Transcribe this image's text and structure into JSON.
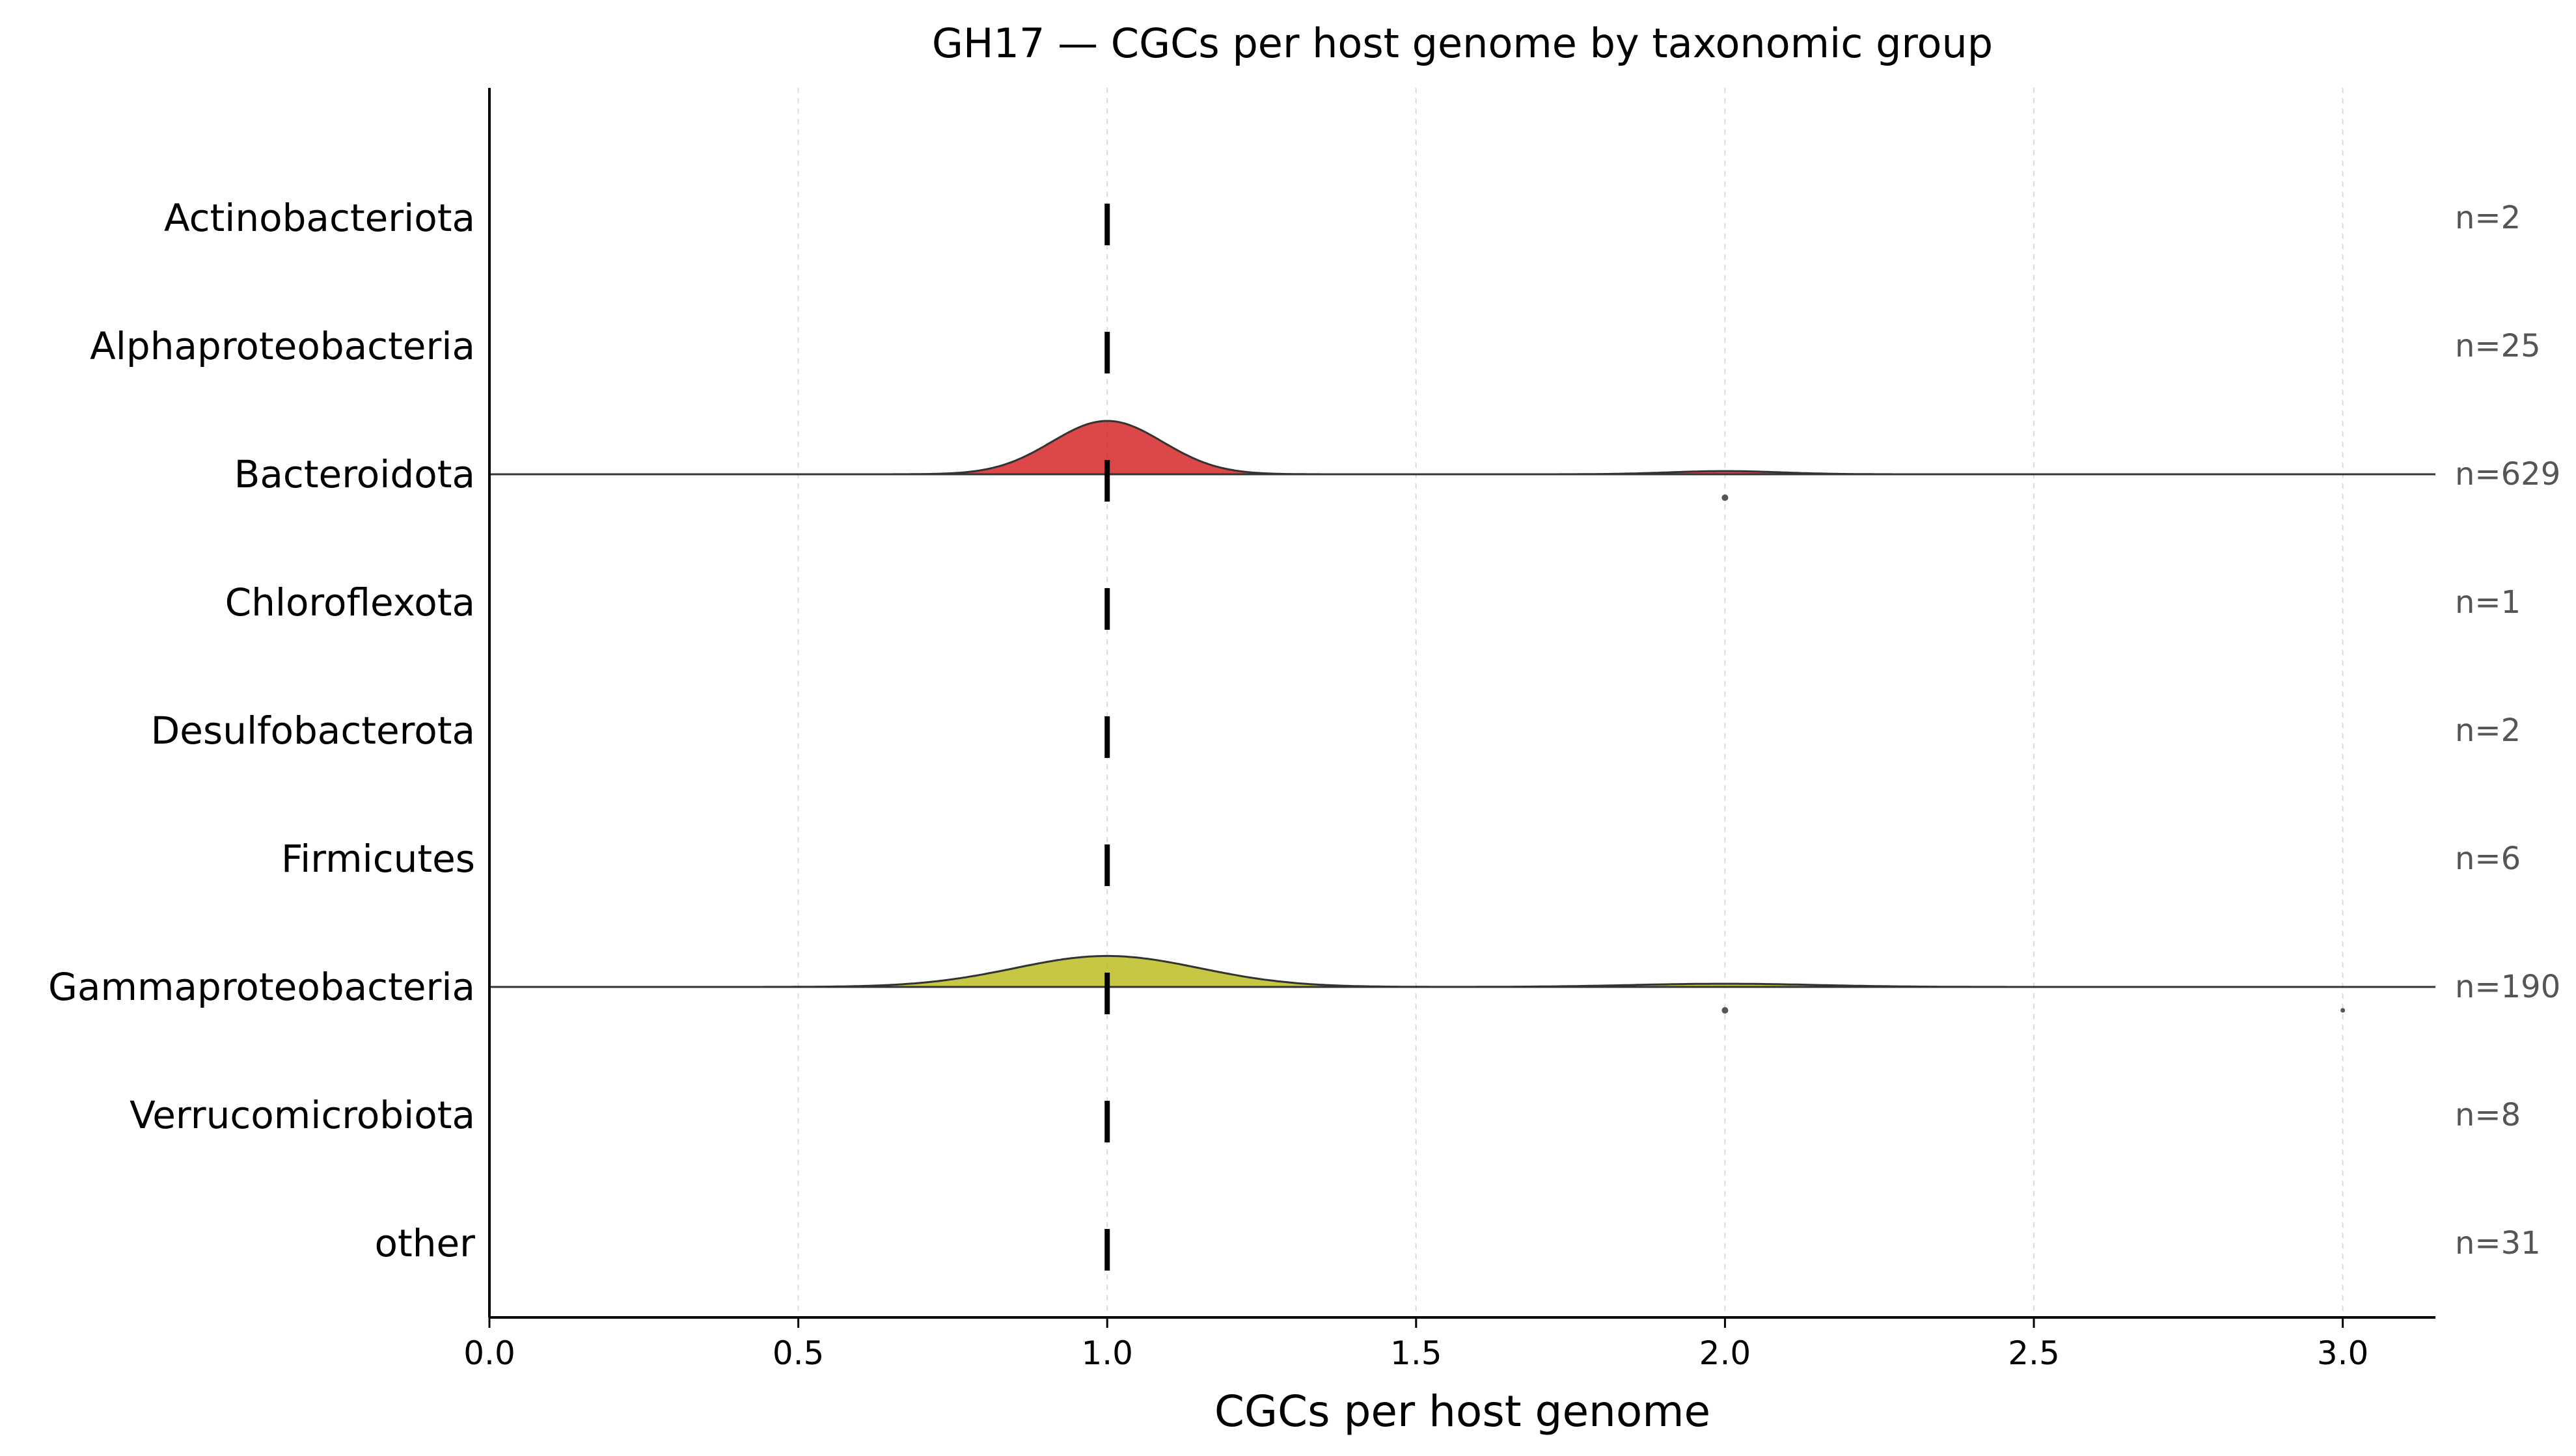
{
  "chart_data": {
    "type": "ridgeline",
    "title": "GH17 — CGCs per host genome by taxonomic group",
    "xlabel": "CGCs per host genome",
    "ylabel": "",
    "xlim": [
      0.0,
      3.15
    ],
    "xticks": [
      0.0,
      0.5,
      1.0,
      1.5,
      2.0,
      2.5,
      3.0
    ],
    "xtick_labels": [
      "0.0",
      "0.5",
      "1.0",
      "1.5",
      "2.0",
      "2.5",
      "3.0"
    ],
    "grid": "vertical-dashed",
    "groups": [
      {
        "name": "Actinobacteriota",
        "n_label": "n=2",
        "median": 1.0,
        "density": [],
        "outliers": []
      },
      {
        "name": "Alphaproteobacteria",
        "n_label": "n=25",
        "median": 1.0,
        "density": [],
        "outliers": []
      },
      {
        "name": "Bacteroidota",
        "n_label": "n=629",
        "median": 1.0,
        "color": "#d62728",
        "density": [
          {
            "center": 1.0,
            "sd": 0.09,
            "height": 1.0
          },
          {
            "center": 2.0,
            "sd": 0.09,
            "height": 0.06
          }
        ],
        "outliers": [
          2.0
        ]
      },
      {
        "name": "Chloroflexota",
        "n_label": "n=1",
        "median": 1.0,
        "density": [],
        "outliers": []
      },
      {
        "name": "Desulfobacterota",
        "n_label": "n=2",
        "median": 1.0,
        "density": [],
        "outliers": []
      },
      {
        "name": "Firmicutes",
        "n_label": "n=6",
        "median": 1.0,
        "density": [],
        "outliers": []
      },
      {
        "name": "Gammaproteobacteria",
        "n_label": "n=190",
        "median": 1.0,
        "color": "#bcbd22",
        "density": [
          {
            "center": 1.0,
            "sd": 0.15,
            "height": 0.58
          },
          {
            "center": 2.0,
            "sd": 0.15,
            "height": 0.06
          }
        ],
        "outliers": [
          2.0,
          3.0
        ]
      },
      {
        "name": "Verrucomicrobiota",
        "n_label": "n=8",
        "median": 1.0,
        "density": [],
        "outliers": []
      },
      {
        "name": "other",
        "n_label": "n=31",
        "median": 1.0,
        "density": [],
        "outliers": []
      }
    ]
  }
}
